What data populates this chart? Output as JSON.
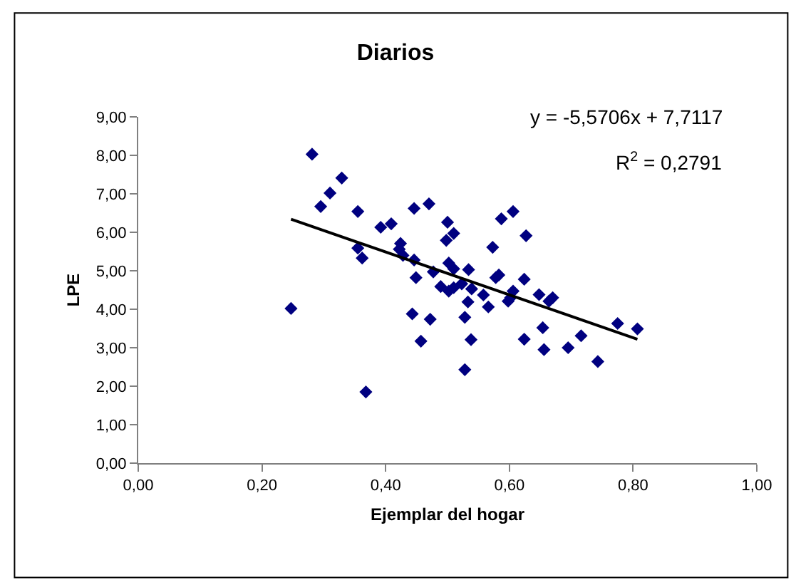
{
  "chart_data": {
    "type": "scatter",
    "title": "Diarios",
    "xlabel": "Ejemplar del hogar",
    "ylabel": "LPE",
    "legend": false,
    "xlim": [
      0,
      1
    ],
    "ylim": [
      0,
      9
    ],
    "xticks": [
      {
        "value": 0,
        "label": "0,00"
      },
      {
        "value": 0.2,
        "label": "0,20"
      },
      {
        "value": 0.4,
        "label": "0,40"
      },
      {
        "value": 0.6,
        "label": "0,60"
      },
      {
        "value": 0.8,
        "label": "0,80"
      },
      {
        "value": 1,
        "label": "1,00"
      }
    ],
    "yticks": [
      {
        "value": 0,
        "label": "0,00"
      },
      {
        "value": 1,
        "label": "1,00"
      },
      {
        "value": 2,
        "label": "2,00"
      },
      {
        "value": 3,
        "label": "3,00"
      },
      {
        "value": 4,
        "label": "4,00"
      },
      {
        "value": 5,
        "label": "5,00"
      },
      {
        "value": 6,
        "label": "6,00"
      },
      {
        "value": 7,
        "label": "7,00"
      },
      {
        "value": 8,
        "label": "8,00"
      },
      {
        "value": 9,
        "label": "9,00"
      }
    ],
    "series": [
      {
        "color": "#000080",
        "marker": "diamond",
        "x": [
          0.281,
          0.329,
          0.31,
          0.295,
          0.355,
          0.446,
          0.47,
          0.392,
          0.409,
          0.355,
          0.362,
          0.424,
          0.422,
          0.428,
          0.446,
          0.449,
          0.477,
          0.489,
          0.247,
          0.443,
          0.472,
          0.457,
          0.368,
          0.5,
          0.51,
          0.498,
          0.573,
          0.587,
          0.606,
          0.627,
          0.502,
          0.51,
          0.534,
          0.502,
          0.51,
          0.523,
          0.539,
          0.558,
          0.578,
          0.583,
          0.606,
          0.598,
          0.602,
          0.624,
          0.648,
          0.664,
          0.67,
          0.533,
          0.566,
          0.528,
          0.654,
          0.538,
          0.624,
          0.656,
          0.695,
          0.716,
          0.775,
          0.807,
          0.743,
          0.528
        ],
        "values": [
          8.03,
          7.41,
          7.02,
          6.67,
          6.54,
          6.62,
          6.74,
          6.13,
          6.22,
          5.59,
          5.33,
          5.71,
          5.56,
          5.4,
          5.28,
          4.82,
          4.97,
          4.59,
          4.02,
          3.88,
          3.74,
          3.17,
          1.85,
          6.26,
          5.97,
          5.79,
          5.61,
          6.35,
          6.54,
          5.91,
          5.2,
          5.05,
          5.03,
          4.47,
          4.56,
          4.66,
          4.53,
          4.37,
          4.82,
          4.89,
          4.47,
          4.21,
          4.3,
          4.78,
          4.38,
          4.21,
          4.3,
          4.19,
          4.06,
          3.79,
          3.52,
          3.21,
          3.22,
          2.95,
          3.0,
          3.31,
          3.63,
          3.49,
          2.64,
          2.43
        ]
      },
      {
        "type": "line",
        "marker": "none",
        "color": "#000000",
        "x": [
          0.247,
          0.807
        ],
        "values": [
          6.34,
          3.22
        ]
      }
    ],
    "annotations": [
      "y = -5,5706x + 7,7117",
      "R$^{2}$ = 0,2791"
    ]
  }
}
